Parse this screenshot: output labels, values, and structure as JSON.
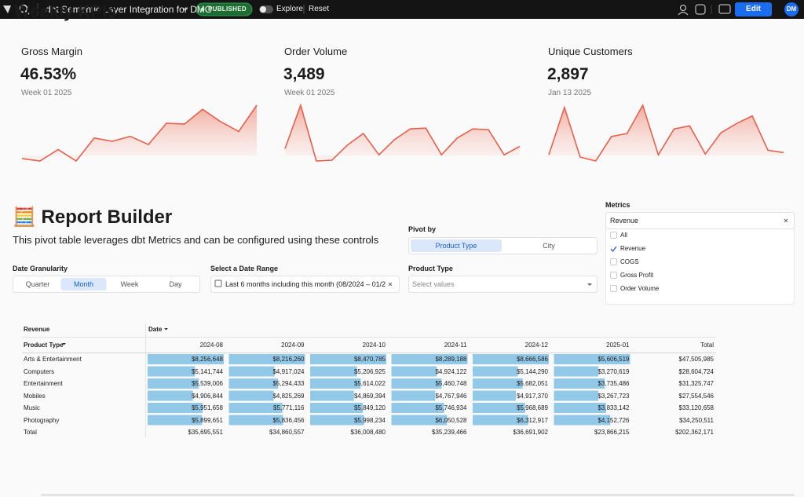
{
  "toolbar": {
    "title": "dbt Semantic Layer Integration for DMO",
    "status": "PUBLISHED",
    "explore": "Explore",
    "reset": "Reset",
    "edit": "Edit",
    "avatar": "DM"
  },
  "kpi_section": {
    "title": "Weekly KPIs",
    "cards": [
      {
        "label": "Gross Margin",
        "value": "46.53%",
        "date": "Week 01 2025",
        "sparkline": [
          4,
          1,
          15,
          1,
          29,
          25,
          31,
          21,
          47,
          46,
          64,
          49,
          37,
          69
        ]
      },
      {
        "label": "Order Volume",
        "value": "3,489",
        "date": "Week 01 2025",
        "sparkline": [
          17,
          74,
          1,
          2,
          22,
          37,
          9,
          29,
          43,
          44,
          9,
          31,
          43,
          42,
          9,
          20
        ]
      },
      {
        "label": "Unique Customers",
        "value": "2,897",
        "date": "Jan 13 2025",
        "sparkline": [
          8,
          70,
          5,
          0,
          32,
          36,
          73,
          8,
          42,
          46,
          9,
          37,
          49,
          59,
          14,
          11
        ]
      }
    ]
  },
  "report_builder": {
    "title": "🧮 Report Builder",
    "description": "This pivot table leverages dbt Metrics and can be configured using these controls",
    "granularity": {
      "label": "Date Granularity",
      "options": [
        "Quarter",
        "Month",
        "Week",
        "Day"
      ],
      "selected": 1
    },
    "date_range": {
      "label": "Select a Date Range",
      "value": "Last 6 months including this month (08/2024 – 01/2..."
    },
    "pivot": {
      "label": "Pivot by",
      "options": [
        "Product Type",
        "City"
      ],
      "selected": 0
    },
    "product_type": {
      "label": "Product Type",
      "placeholder": "Select values"
    },
    "metrics": {
      "label": "Metrics",
      "selected_value": "Revenue",
      "options": [
        "All",
        "Revenue",
        "COGS",
        "Gross Profit",
        "Order Volume"
      ],
      "checked": [
        1
      ]
    }
  },
  "pivot_table": {
    "metric": "Revenue",
    "column_header": "Date",
    "row_header": "Product Type",
    "columns": [
      "2024-08",
      "2024-09",
      "2024-10",
      "2024-11",
      "2024-12",
      "2025-01"
    ],
    "total_column": "Total",
    "rows": [
      {
        "label": "Arts & Entertainment",
        "values": [
          8256648,
          8216260,
          8470785,
          8289188,
          8666586,
          5606519
        ],
        "value_labels": [
          "$8,256,648",
          "$8,216,260",
          "$8,470,785",
          "$8,289,188",
          "$8,666,586",
          "$5,606,519"
        ],
        "total": "$47,505,985"
      },
      {
        "label": "Computers",
        "values": [
          5141744,
          4917024,
          5206925,
          4924122,
          5144290,
          3270619
        ],
        "value_labels": [
          "$5,141,744",
          "$4,917,024",
          "$5,206,925",
          "$4,924,122",
          "$5,144,290",
          "$3,270,619"
        ],
        "total": "$28,604,724"
      },
      {
        "label": "Entertainment",
        "values": [
          5539006,
          5294433,
          5614022,
          5460748,
          5682051,
          3735486
        ],
        "value_labels": [
          "$5,539,006",
          "$5,294,433",
          "$5,614,022",
          "$5,460,748",
          "$5,682,051",
          "$3,735,486"
        ],
        "total": "$31,325,747"
      },
      {
        "label": "Mobiles",
        "values": [
          4906844,
          4825269,
          4869394,
          4767946,
          4917370,
          3267723
        ],
        "value_labels": [
          "$4,906,844",
          "$4,825,269",
          "$4,869,394",
          "$4,767,946",
          "$4,917,370",
          "$3,267,723"
        ],
        "total": "$27,554,546"
      },
      {
        "label": "Music",
        "values": [
          5951658,
          5771116,
          5849120,
          5746934,
          5968689,
          3833142
        ],
        "value_labels": [
          "$5,951,658",
          "$5,771,116",
          "$5,849,120",
          "$5,746,934",
          "$5,968,689",
          "$3,833,142"
        ],
        "total": "$33,120,658"
      },
      {
        "label": "Photography",
        "values": [
          5899651,
          5836456,
          5998234,
          6050528,
          6312917,
          4152726
        ],
        "value_labels": [
          "$5,899,651",
          "$5,836,456",
          "$5,998,234",
          "$6,050,528",
          "$6,312,917",
          "$4,152,726"
        ],
        "total": "$34,250,511"
      }
    ],
    "totals": {
      "label": "Total",
      "values": [
        "$35,695,551",
        "$34,860,557",
        "$36,008,480",
        "$35,239,466",
        "$36,691,902",
        "$23,866,215"
      ],
      "total": "$202,362,171"
    }
  }
}
